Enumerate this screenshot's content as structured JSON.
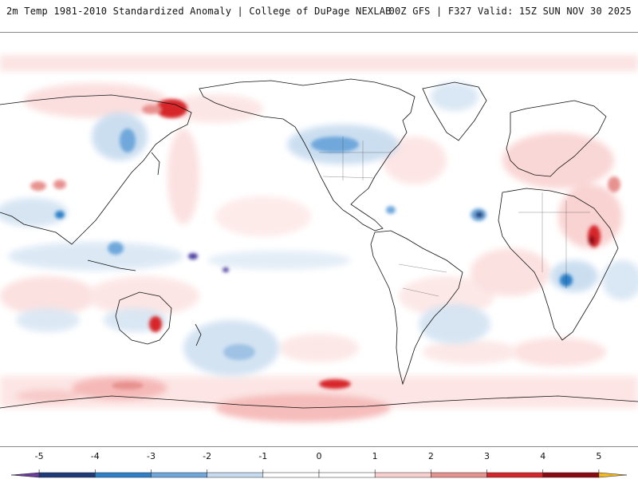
{
  "header": {
    "title": "2m Temp 1981-2010 Standardized Anomaly | College of DuPage NEXLAB",
    "run_info": "00Z GFS | F327 Valid: 15Z SUN NOV 30 2025"
  },
  "legend": {
    "ticks": [
      "-5",
      "-4",
      "-3",
      "-2",
      "-1",
      "0",
      "1",
      "2",
      "3",
      "4",
      "5"
    ],
    "bins": [
      {
        "from": -5.5,
        "to": -5,
        "color": "#6a3d9a"
      },
      {
        "from": -5,
        "to": -4,
        "color": "#1f3a7a"
      },
      {
        "from": -4,
        "to": -3,
        "color": "#2c7fc8"
      },
      {
        "from": -3,
        "to": -2,
        "color": "#6fa8dc"
      },
      {
        "from": -2,
        "to": -1,
        "color": "#c6dbef"
      },
      {
        "from": -1,
        "to": 0,
        "color": "#ffffff"
      },
      {
        "from": 0,
        "to": 1,
        "color": "#ffffff"
      },
      {
        "from": 1,
        "to": 2,
        "color": "#f9d0cf"
      },
      {
        "from": 2,
        "to": 3,
        "color": "#e8928f"
      },
      {
        "from": 3,
        "to": 4,
        "color": "#d7262b"
      },
      {
        "from": 4,
        "to": 5,
        "color": "#8b0a12"
      },
      {
        "from": 5,
        "to": 5.5,
        "color": "#f2b722"
      }
    ]
  }
}
